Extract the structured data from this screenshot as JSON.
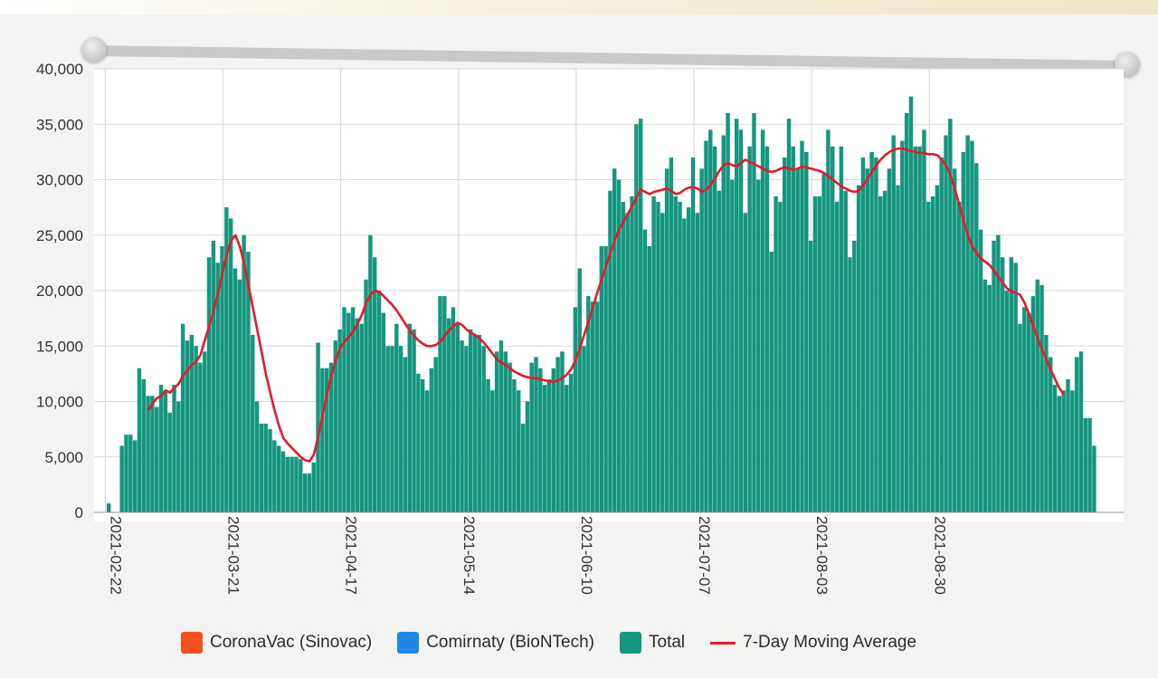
{
  "chart_data": {
    "type": "bar",
    "title": "",
    "xlabel": "",
    "ylabel": "",
    "ylim": [
      0,
      40000
    ],
    "yticks": [
      0,
      5000,
      10000,
      15000,
      20000,
      25000,
      30000,
      35000,
      40000
    ],
    "ytick_labels": [
      "0",
      "5,000",
      "10,000",
      "15,000",
      "20,000",
      "25,000",
      "30,000",
      "35,000",
      "40,000"
    ],
    "x_start": "2021-02-22",
    "x_ticks": [
      "2021-02-22",
      "2021-03-21",
      "2021-04-17",
      "2021-05-14",
      "2021-06-10",
      "2021-07-07",
      "2021-08-03",
      "2021-08-30"
    ],
    "grid": true,
    "legend_position": "bottom",
    "series": [
      {
        "name": "CoronaVac (Sinovac)",
        "color": "#f4511e",
        "values": []
      },
      {
        "name": "Comirnaty (BioNTech)",
        "color": "#1e88e5",
        "values": []
      },
      {
        "name": "Total",
        "color": "#15967e",
        "values": [
          800,
          0,
          0,
          6000,
          7000,
          7000,
          6500,
          13000,
          12000,
          10500,
          10500,
          9500,
          11500,
          11000,
          9000,
          11500,
          10000,
          17000,
          15500,
          16000,
          15000,
          13500,
          14500,
          23000,
          24500,
          22500,
          24000,
          27500,
          26500,
          22000,
          21000,
          25000,
          23500,
          16000,
          10000,
          8000,
          8000,
          7500,
          6500,
          6000,
          5500,
          5000,
          5000,
          5000,
          4800,
          3500,
          3500,
          4500,
          15300,
          13000,
          13000,
          13500,
          15500,
          16500,
          18500,
          18000,
          18500,
          17500,
          17000,
          21000,
          25000,
          23000,
          20000,
          18000,
          15000,
          15000,
          17000,
          15000,
          14000,
          17000,
          16500,
          12500,
          12000,
          11000,
          13000,
          14000,
          19500,
          19500,
          17500,
          18500,
          17000,
          15500,
          15000,
          16500,
          16000,
          16000,
          15000,
          12000,
          11000,
          14500,
          15500,
          14500,
          13500,
          12000,
          11000,
          8000,
          10000,
          13500,
          14000,
          13000,
          11500,
          12000,
          13000,
          14000,
          14500,
          11500,
          12500,
          18500,
          22000,
          15000,
          19500,
          19000,
          19000,
          24000,
          24000,
          29000,
          31000,
          30000,
          28000,
          27000,
          28500,
          35000,
          35500,
          25500,
          24000,
          28500,
          28000,
          27000,
          31000,
          32000,
          28500,
          28000,
          26500,
          27500,
          32000,
          27000,
          31000,
          33500,
          34500,
          33000,
          29000,
          34000,
          36000,
          30000,
          35500,
          34500,
          27000,
          33000,
          36000,
          30000,
          34500,
          33000,
          23500,
          28500,
          28000,
          32000,
          35500,
          33000,
          31000,
          33500,
          32500,
          24500,
          28500,
          28500,
          30500,
          34500,
          33000,
          28000,
          33000,
          29000,
          23000,
          24500,
          29500,
          32000,
          31000,
          32500,
          32000,
          28500,
          29000,
          31000,
          34000,
          29500,
          33500,
          36000,
          37500,
          33000,
          33000,
          34500,
          28000,
          28500,
          29500,
          32000,
          34000,
          35500,
          31000,
          28000,
          32500,
          34000,
          33500,
          31500,
          25500,
          21000,
          20500,
          24500,
          25000,
          23000,
          20000,
          23000,
          22500,
          17000,
          18500,
          18000,
          19500,
          21000,
          20500,
          16000,
          14000,
          11500,
          10500,
          11000,
          12000,
          11000,
          14000,
          14500,
          8500,
          8500,
          6000
        ]
      },
      {
        "name": "7-Day Moving Average",
        "color": "#e8192b",
        "type": "line",
        "values": [
          null,
          null,
          null,
          null,
          null,
          null,
          null,
          null,
          null,
          9200,
          9800,
          10300,
          10500,
          11000,
          10800,
          11200,
          11600,
          12300,
          12800,
          13300,
          13600,
          14200,
          15500,
          16800,
          18200,
          19800,
          21500,
          23200,
          24500,
          25000,
          24000,
          22500,
          20500,
          18500,
          16500,
          14500,
          12500,
          10800,
          9200,
          7800,
          6700,
          6200,
          5800,
          5400,
          5000,
          4700,
          4600,
          5200,
          6800,
          8700,
          10600,
          12300,
          13700,
          14800,
          15400,
          15800,
          16300,
          17000,
          17800,
          18900,
          19600,
          20000,
          19900,
          19500,
          19100,
          18700,
          18200,
          17600,
          17000,
          16400,
          15900,
          15500,
          15200,
          15000,
          15000,
          15100,
          15400,
          15900,
          16400,
          16800,
          17100,
          16900,
          16500,
          16200,
          16000,
          15700,
          15300,
          14800,
          14300,
          13800,
          13500,
          13300,
          13000,
          12700,
          12500,
          12300,
          12200,
          12100,
          12100,
          12000,
          11900,
          11800,
          11800,
          11900,
          12100,
          12400,
          12900,
          13700,
          14800,
          16000,
          17200,
          18500,
          19800,
          21000,
          22200,
          23400,
          24500,
          25500,
          26200,
          26900,
          27600,
          28400,
          29100,
          28900,
          28700,
          28900,
          29000,
          29100,
          29200,
          29000,
          28700,
          28800,
          29100,
          29300,
          29300,
          29200,
          28900,
          29100,
          29500,
          30100,
          30800,
          31300,
          31500,
          31300,
          31200,
          31500,
          31800,
          31600,
          31400,
          31200,
          31000,
          30800,
          30700,
          30800,
          31000,
          31100,
          31000,
          30900,
          31000,
          31200,
          31100,
          31000,
          30900,
          30800,
          30600,
          30300,
          30000,
          29700,
          29400,
          29200,
          29000,
          28900,
          29000,
          29500,
          30100,
          30700,
          31300,
          31800,
          32200,
          32500,
          32700,
          32800,
          32800,
          32700,
          32600,
          32500,
          32400,
          32400,
          32300,
          32300,
          32200,
          31800,
          31300,
          30400,
          29200,
          27800,
          26300,
          25000,
          24000,
          23400,
          22900,
          22600,
          22300,
          21800,
          21200,
          20700,
          20200,
          19900,
          19800,
          19600,
          18900,
          17900,
          16800,
          15700,
          14700,
          13800,
          12900,
          12000,
          11200,
          10600
        ]
      }
    ]
  }
}
